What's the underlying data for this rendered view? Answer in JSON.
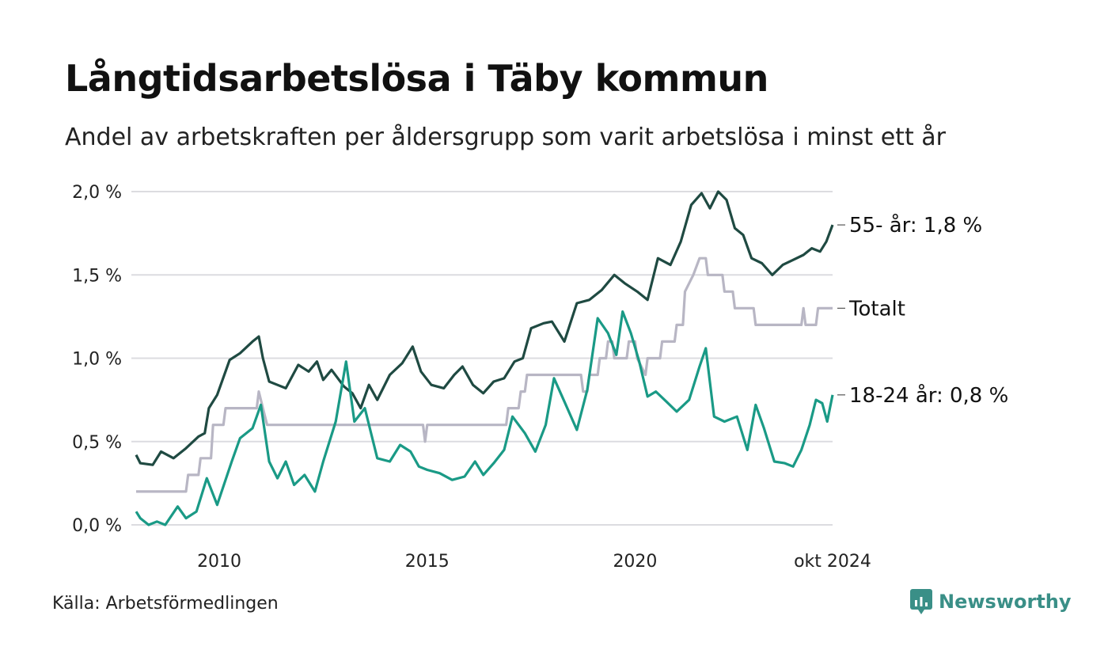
{
  "title": "Långtidsarbetslösa i Täby kommun",
  "subtitle": "Andel av arbetskraften per åldersgrupp som varit arbetslösa i minst ett år",
  "source": "Källa: Arbetsförmedlingen",
  "brand": "Newsworthy",
  "chart_data": {
    "type": "line",
    "x_start_year": 2008.0,
    "x_end_year": 2024.75,
    "ylim": [
      0,
      2.0
    ],
    "y_ticks": [
      {
        "value": 0.0,
        "label": "0,0 %"
      },
      {
        "value": 0.5,
        "label": "0,5 %"
      },
      {
        "value": 1.0,
        "label": "1,0 %"
      },
      {
        "value": 1.5,
        "label": "1,5 %"
      },
      {
        "value": 2.0,
        "label": "2,0 %"
      }
    ],
    "x_ticks": [
      {
        "value": 2010.0,
        "label": "2010"
      },
      {
        "value": 2015.0,
        "label": "2015"
      },
      {
        "value": 2020.0,
        "label": "2020"
      },
      {
        "value": 2024.75,
        "label": "okt 2024"
      }
    ],
    "series": [
      {
        "name": "55- år",
        "label": "55- år: 1,8 %",
        "color": "#1f4a42",
        "points": [
          [
            2008.0,
            0.42
          ],
          [
            2008.1,
            0.37
          ],
          [
            2008.4,
            0.36
          ],
          [
            2008.6,
            0.44
          ],
          [
            2008.9,
            0.4
          ],
          [
            2009.2,
            0.46
          ],
          [
            2009.5,
            0.53
          ],
          [
            2009.65,
            0.55
          ],
          [
            2009.75,
            0.7
          ],
          [
            2009.95,
            0.78
          ],
          [
            2010.25,
            0.99
          ],
          [
            2010.5,
            1.03
          ],
          [
            2010.8,
            1.1
          ],
          [
            2010.95,
            1.13
          ],
          [
            2011.05,
            1.0
          ],
          [
            2011.2,
            0.86
          ],
          [
            2011.4,
            0.84
          ],
          [
            2011.6,
            0.82
          ],
          [
            2011.9,
            0.96
          ],
          [
            2012.15,
            0.92
          ],
          [
            2012.35,
            0.98
          ],
          [
            2012.5,
            0.87
          ],
          [
            2012.7,
            0.93
          ],
          [
            2013.0,
            0.83
          ],
          [
            2013.2,
            0.79
          ],
          [
            2013.4,
            0.7
          ],
          [
            2013.6,
            0.84
          ],
          [
            2013.8,
            0.75
          ],
          [
            2014.1,
            0.9
          ],
          [
            2014.4,
            0.97
          ],
          [
            2014.65,
            1.07
          ],
          [
            2014.85,
            0.92
          ],
          [
            2015.1,
            0.84
          ],
          [
            2015.4,
            0.82
          ],
          [
            2015.65,
            0.9
          ],
          [
            2015.85,
            0.95
          ],
          [
            2016.1,
            0.84
          ],
          [
            2016.35,
            0.79
          ],
          [
            2016.6,
            0.86
          ],
          [
            2016.85,
            0.88
          ],
          [
            2017.1,
            0.98
          ],
          [
            2017.3,
            1.0
          ],
          [
            2017.5,
            1.18
          ],
          [
            2017.8,
            1.21
          ],
          [
            2018.0,
            1.22
          ],
          [
            2018.3,
            1.1
          ],
          [
            2018.6,
            1.33
          ],
          [
            2018.9,
            1.35
          ],
          [
            2019.2,
            1.41
          ],
          [
            2019.5,
            1.5
          ],
          [
            2019.75,
            1.45
          ],
          [
            2020.05,
            1.4
          ],
          [
            2020.3,
            1.35
          ],
          [
            2020.55,
            1.6
          ],
          [
            2020.85,
            1.56
          ],
          [
            2021.1,
            1.7
          ],
          [
            2021.35,
            1.92
          ],
          [
            2021.6,
            1.99
          ],
          [
            2021.8,
            1.9
          ],
          [
            2022.0,
            2.0
          ],
          [
            2022.2,
            1.95
          ],
          [
            2022.4,
            1.78
          ],
          [
            2022.6,
            1.74
          ],
          [
            2022.8,
            1.6
          ],
          [
            2023.05,
            1.57
          ],
          [
            2023.3,
            1.5
          ],
          [
            2023.55,
            1.56
          ],
          [
            2023.8,
            1.59
          ],
          [
            2024.05,
            1.62
          ],
          [
            2024.25,
            1.66
          ],
          [
            2024.45,
            1.64
          ],
          [
            2024.6,
            1.7
          ],
          [
            2024.75,
            1.8
          ]
        ]
      },
      {
        "name": "Totalt",
        "label": "Totalt",
        "color": "#b8b6c4",
        "points": [
          [
            2008.0,
            0.2
          ],
          [
            2009.2,
            0.2
          ],
          [
            2009.25,
            0.3
          ],
          [
            2009.5,
            0.3
          ],
          [
            2009.55,
            0.4
          ],
          [
            2009.8,
            0.4
          ],
          [
            2009.85,
            0.6
          ],
          [
            2010.1,
            0.6
          ],
          [
            2010.15,
            0.7
          ],
          [
            2010.9,
            0.7
          ],
          [
            2010.95,
            0.8
          ],
          [
            2011.05,
            0.7
          ],
          [
            2011.15,
            0.6
          ],
          [
            2014.9,
            0.6
          ],
          [
            2014.95,
            0.5
          ],
          [
            2015.0,
            0.6
          ],
          [
            2016.9,
            0.6
          ],
          [
            2016.95,
            0.7
          ],
          [
            2017.2,
            0.7
          ],
          [
            2017.25,
            0.8
          ],
          [
            2017.35,
            0.8
          ],
          [
            2017.4,
            0.9
          ],
          [
            2018.7,
            0.9
          ],
          [
            2018.75,
            0.8
          ],
          [
            2018.85,
            0.8
          ],
          [
            2018.9,
            0.9
          ],
          [
            2019.1,
            0.9
          ],
          [
            2019.15,
            1.0
          ],
          [
            2019.3,
            1.0
          ],
          [
            2019.35,
            1.1
          ],
          [
            2019.45,
            1.1
          ],
          [
            2019.5,
            1.0
          ],
          [
            2019.8,
            1.0
          ],
          [
            2019.85,
            1.1
          ],
          [
            2020.0,
            1.1
          ],
          [
            2020.05,
            1.0
          ],
          [
            2020.25,
            0.9
          ],
          [
            2020.3,
            1.0
          ],
          [
            2020.6,
            1.0
          ],
          [
            2020.65,
            1.1
          ],
          [
            2020.95,
            1.1
          ],
          [
            2021.0,
            1.2
          ],
          [
            2021.15,
            1.2
          ],
          [
            2021.2,
            1.4
          ],
          [
            2021.4,
            1.5
          ],
          [
            2021.55,
            1.6
          ],
          [
            2021.7,
            1.6
          ],
          [
            2021.75,
            1.5
          ],
          [
            2022.1,
            1.5
          ],
          [
            2022.15,
            1.4
          ],
          [
            2022.35,
            1.4
          ],
          [
            2022.4,
            1.3
          ],
          [
            2022.85,
            1.3
          ],
          [
            2022.9,
            1.2
          ],
          [
            2024.0,
            1.2
          ],
          [
            2024.05,
            1.3
          ],
          [
            2024.1,
            1.2
          ],
          [
            2024.35,
            1.2
          ],
          [
            2024.4,
            1.3
          ],
          [
            2024.75,
            1.3
          ]
        ]
      },
      {
        "name": "18-24 år",
        "label": "18-24 år: 0,8 %",
        "color": "#1a9a86",
        "points": [
          [
            2008.0,
            0.08
          ],
          [
            2008.1,
            0.04
          ],
          [
            2008.3,
            0.0
          ],
          [
            2008.5,
            0.02
          ],
          [
            2008.7,
            0.0
          ],
          [
            2009.0,
            0.11
          ],
          [
            2009.2,
            0.04
          ],
          [
            2009.45,
            0.08
          ],
          [
            2009.7,
            0.28
          ],
          [
            2009.95,
            0.12
          ],
          [
            2010.3,
            0.38
          ],
          [
            2010.5,
            0.52
          ],
          [
            2010.8,
            0.58
          ],
          [
            2011.0,
            0.72
          ],
          [
            2011.2,
            0.38
          ],
          [
            2011.4,
            0.28
          ],
          [
            2011.6,
            0.38
          ],
          [
            2011.8,
            0.24
          ],
          [
            2012.05,
            0.3
          ],
          [
            2012.3,
            0.2
          ],
          [
            2012.5,
            0.38
          ],
          [
            2012.8,
            0.62
          ],
          [
            2013.05,
            0.98
          ],
          [
            2013.25,
            0.62
          ],
          [
            2013.5,
            0.7
          ],
          [
            2013.8,
            0.4
          ],
          [
            2014.1,
            0.38
          ],
          [
            2014.35,
            0.48
          ],
          [
            2014.6,
            0.44
          ],
          [
            2014.8,
            0.35
          ],
          [
            2015.0,
            0.33
          ],
          [
            2015.3,
            0.31
          ],
          [
            2015.6,
            0.27
          ],
          [
            2015.9,
            0.29
          ],
          [
            2016.15,
            0.38
          ],
          [
            2016.35,
            0.3
          ],
          [
            2016.6,
            0.37
          ],
          [
            2016.85,
            0.45
          ],
          [
            2017.05,
            0.65
          ],
          [
            2017.35,
            0.55
          ],
          [
            2017.6,
            0.44
          ],
          [
            2017.85,
            0.6
          ],
          [
            2018.05,
            0.88
          ],
          [
            2018.3,
            0.74
          ],
          [
            2018.6,
            0.57
          ],
          [
            2018.85,
            0.81
          ],
          [
            2019.1,
            1.24
          ],
          [
            2019.35,
            1.15
          ],
          [
            2019.55,
            1.02
          ],
          [
            2019.7,
            1.28
          ],
          [
            2019.9,
            1.15
          ],
          [
            2020.1,
            0.98
          ],
          [
            2020.3,
            0.77
          ],
          [
            2020.5,
            0.8
          ],
          [
            2020.75,
            0.74
          ],
          [
            2021.0,
            0.68
          ],
          [
            2021.3,
            0.75
          ],
          [
            2021.55,
            0.95
          ],
          [
            2021.7,
            1.06
          ],
          [
            2021.9,
            0.65
          ],
          [
            2022.15,
            0.62
          ],
          [
            2022.45,
            0.65
          ],
          [
            2022.7,
            0.45
          ],
          [
            2022.9,
            0.72
          ],
          [
            2023.1,
            0.58
          ],
          [
            2023.35,
            0.38
          ],
          [
            2023.6,
            0.37
          ],
          [
            2023.8,
            0.35
          ],
          [
            2024.0,
            0.45
          ],
          [
            2024.2,
            0.6
          ],
          [
            2024.35,
            0.75
          ],
          [
            2024.5,
            0.73
          ],
          [
            2024.62,
            0.62
          ],
          [
            2024.75,
            0.78
          ]
        ]
      }
    ]
  }
}
